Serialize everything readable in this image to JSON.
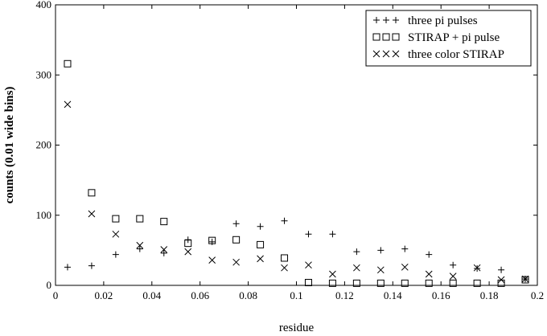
{
  "chart_data": {
    "type": "scatter",
    "title": "",
    "xlabel": "residue",
    "ylabel": "counts (0.01 wide bins)",
    "xlim": [
      0,
      0.2
    ],
    "ylim": [
      0,
      400
    ],
    "grid": false,
    "legend_position": "top-right",
    "x_ticks": [
      0,
      0.02,
      0.04,
      0.06,
      0.08,
      0.1,
      0.12,
      0.14,
      0.16,
      0.18,
      0.2
    ],
    "x_tick_labels": [
      "0",
      "0.02",
      "0.04",
      "0.06",
      "0.08",
      "0.1",
      "0.12",
      "0.14",
      "0.16",
      "0.18",
      "0.2"
    ],
    "y_ticks": [
      0,
      100,
      200,
      300,
      400
    ],
    "y_tick_labels": [
      "0",
      "100",
      "200",
      "300",
      "400"
    ],
    "x": [
      0.005,
      0.015,
      0.025,
      0.035,
      0.045,
      0.055,
      0.065,
      0.075,
      0.085,
      0.095,
      0.105,
      0.115,
      0.125,
      0.135,
      0.145,
      0.155,
      0.165,
      0.175,
      0.185,
      0.195
    ],
    "series": [
      {
        "name": "three pi pulses",
        "marker": "plus",
        "legend_symbols": "+++",
        "values": [
          26,
          28,
          44,
          52,
          46,
          65,
          62,
          88,
          84,
          92,
          73,
          73,
          48,
          50,
          52,
          44,
          29,
          24,
          22,
          9
        ]
      },
      {
        "name": "STIRAP + pi pulse",
        "marker": "square",
        "legend_symbols": "□□□",
        "values": [
          316,
          132,
          95,
          95,
          91,
          60,
          64,
          65,
          58,
          39,
          4,
          3,
          3,
          3,
          3,
          3,
          3,
          3,
          3,
          8
        ]
      },
      {
        "name": "three color STIRAP",
        "marker": "x",
        "legend_symbols": "×××",
        "values": [
          258,
          102,
          73,
          57,
          51,
          48,
          36,
          33,
          38,
          25,
          29,
          16,
          25,
          22,
          26,
          16,
          13,
          25,
          8,
          9
        ]
      }
    ]
  }
}
